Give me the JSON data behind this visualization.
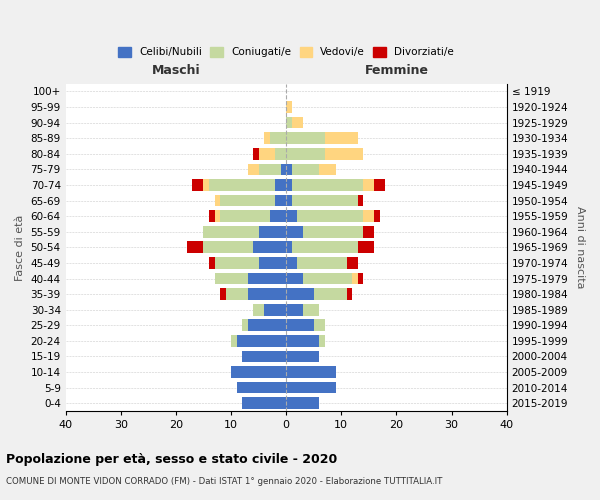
{
  "age_groups": [
    "100+",
    "95-99",
    "90-94",
    "85-89",
    "80-84",
    "75-79",
    "70-74",
    "65-69",
    "60-64",
    "55-59",
    "50-54",
    "45-49",
    "40-44",
    "35-39",
    "30-34",
    "25-29",
    "20-24",
    "15-19",
    "10-14",
    "5-9",
    "0-4"
  ],
  "birth_years": [
    "≤ 1919",
    "1920-1924",
    "1925-1929",
    "1930-1934",
    "1935-1939",
    "1940-1944",
    "1945-1949",
    "1950-1954",
    "1955-1959",
    "1960-1964",
    "1965-1969",
    "1970-1974",
    "1975-1979",
    "1980-1984",
    "1985-1989",
    "1990-1994",
    "1995-1999",
    "2000-2004",
    "2005-2009",
    "2010-2014",
    "2015-2019"
  ],
  "colors": {
    "celibi": "#4472C4",
    "coniugati": "#c5d9a0",
    "vedovi": "#FFD580",
    "divorziati": "#CC0000"
  },
  "maschi": {
    "celibi": [
      0,
      0,
      0,
      0,
      0,
      1,
      2,
      2,
      3,
      5,
      6,
      5,
      7,
      7,
      4,
      7,
      9,
      8,
      10,
      9,
      8
    ],
    "coniugati": [
      0,
      0,
      0,
      3,
      2,
      4,
      12,
      10,
      9,
      10,
      9,
      8,
      6,
      4,
      2,
      1,
      1,
      0,
      0,
      0,
      0
    ],
    "vedovi": [
      0,
      0,
      0,
      1,
      3,
      2,
      1,
      1,
      1,
      0,
      0,
      0,
      0,
      0,
      0,
      0,
      0,
      0,
      0,
      0,
      0
    ],
    "divorziati": [
      0,
      0,
      0,
      0,
      1,
      0,
      2,
      0,
      1,
      0,
      3,
      1,
      0,
      1,
      0,
      0,
      0,
      0,
      0,
      0,
      0
    ]
  },
  "femmine": {
    "celibi": [
      0,
      0,
      0,
      0,
      0,
      1,
      1,
      1,
      2,
      3,
      1,
      2,
      3,
      5,
      3,
      5,
      6,
      6,
      9,
      9,
      6
    ],
    "coniugati": [
      0,
      0,
      1,
      7,
      7,
      5,
      13,
      12,
      12,
      11,
      12,
      9,
      9,
      6,
      3,
      2,
      1,
      0,
      0,
      0,
      0
    ],
    "vedovi": [
      0,
      1,
      2,
      6,
      7,
      3,
      2,
      0,
      2,
      0,
      0,
      0,
      1,
      0,
      0,
      0,
      0,
      0,
      0,
      0,
      0
    ],
    "divorziati": [
      0,
      0,
      0,
      0,
      0,
      0,
      2,
      1,
      1,
      2,
      3,
      2,
      1,
      1,
      0,
      0,
      0,
      0,
      0,
      0,
      0
    ]
  },
  "title": "Popolazione per età, sesso e stato civile - 2020",
  "subtitle": "COMUNE DI MONTE VIDON CORRADO (FM) - Dati ISTAT 1° gennaio 2020 - Elaborazione TUTTITALIA.IT",
  "xlabel_left": "Maschi",
  "xlabel_right": "Femmine",
  "ylabel_left": "Fasce di età",
  "ylabel_right": "Anni di nascita",
  "xlim": 40,
  "legend_labels": [
    "Celibi/Nubili",
    "Coniugati/e",
    "Vedovi/e",
    "Divorziati/e"
  ],
  "bg_color": "#f0f0f0",
  "plot_bg": "#ffffff"
}
